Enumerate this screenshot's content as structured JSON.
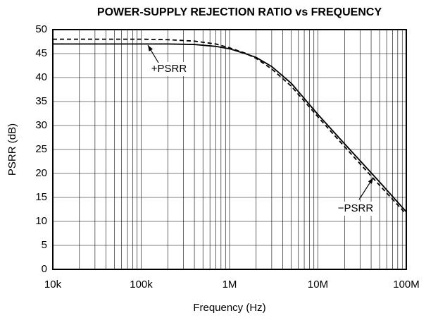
{
  "chart_data": {
    "type": "line",
    "title": "POWER-SUPPLY REJECTION RATIO vs FREQUENCY",
    "x_label": "Frequency (Hz)",
    "y_label": "PSRR (dB)",
    "x": [
      10000,
      30000,
      100000,
      200000,
      400000,
      700000,
      1000000,
      1500000,
      2000000,
      3000000,
      5000000,
      10000000,
      20000000,
      50000000,
      100000000
    ],
    "series": [
      {
        "name": "+PSRR",
        "color": "#000000",
        "style": "solid",
        "values": [
          47,
          47,
          47,
          47,
          46.9,
          46.5,
          46,
          45,
          44.2,
          42.3,
          38.8,
          32.3,
          26.2,
          18.2,
          12
        ]
      },
      {
        "name": "−PSRR",
        "color": "#000000",
        "style": "dashed",
        "values": [
          48,
          48,
          48,
          47.9,
          47.6,
          47,
          46.2,
          45.1,
          44,
          41.8,
          38.2,
          31.8,
          25.6,
          17.5,
          11.5
        ]
      }
    ],
    "xlim": [
      10000,
      100000000
    ],
    "xticks": [
      {
        "value": 10000,
        "label": "10k"
      },
      {
        "value": 100000,
        "label": "100k"
      },
      {
        "value": 1000000,
        "label": "1M"
      },
      {
        "value": 10000000,
        "label": "10M"
      },
      {
        "value": 100000000,
        "label": "100M"
      }
    ],
    "x_log": true,
    "ylim": [
      0,
      50
    ],
    "yticks": [
      0,
      5,
      10,
      15,
      20,
      25,
      30,
      35,
      40,
      45,
      50
    ],
    "grid": true
  }
}
